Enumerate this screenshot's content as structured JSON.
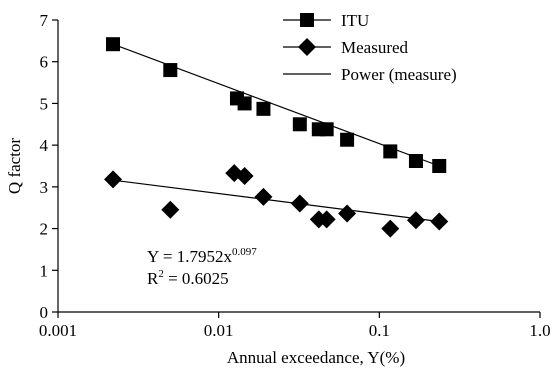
{
  "chart_data": {
    "type": "scatter",
    "xlabel": "Annual exceedance, Y(%)",
    "ylabel": "Q factor",
    "x_scale": "log",
    "xlim": [
      0.001,
      1.0
    ],
    "ylim": [
      0,
      7
    ],
    "x_ticks": [
      {
        "value": 0.001,
        "label": "0.001"
      },
      {
        "value": 0.01,
        "label": "0.01"
      },
      {
        "value": 0.1,
        "label": "0.1"
      },
      {
        "value": 1.0,
        "label": "1.0"
      }
    ],
    "y_ticks": [
      0,
      1,
      2,
      3,
      4,
      5,
      6,
      7
    ],
    "grid": false,
    "legend_position": "top-right",
    "series": [
      {
        "name": "ITU",
        "marker": "square",
        "color": "#000000",
        "x": [
          0.0022,
          0.005,
          0.013,
          0.0145,
          0.019,
          0.032,
          0.042,
          0.047,
          0.063,
          0.117,
          0.169,
          0.236
        ],
        "y": [
          6.42,
          5.8,
          5.12,
          5.0,
          4.87,
          4.5,
          4.38,
          4.38,
          4.13,
          3.85,
          3.62,
          3.5
        ]
      },
      {
        "name": "Measured",
        "marker": "diamond",
        "color": "#000000",
        "x": [
          0.0022,
          0.005,
          0.0125,
          0.0145,
          0.019,
          0.032,
          0.042,
          0.047,
          0.063,
          0.117,
          0.169,
          0.236
        ],
        "y": [
          3.18,
          2.45,
          3.33,
          3.26,
          2.76,
          2.6,
          2.22,
          2.22,
          2.36,
          2.0,
          2.2,
          2.17
        ]
      }
    ],
    "trendlines": [
      {
        "name": "",
        "of": "ITU",
        "x": [
          0.0022,
          0.236
        ],
        "y": [
          6.42,
          3.5
        ]
      },
      {
        "name": "Power (measure)",
        "of": "Measured",
        "x": [
          0.0022,
          0.236
        ],
        "y": [
          3.16,
          2.17
        ]
      }
    ],
    "annotations": [
      {
        "text_main": "Y = 1.7952x",
        "text_sup": "0.097"
      },
      {
        "text_main": "R",
        "text_sup": "2",
        "text_tail": " = 0.6025"
      }
    ]
  }
}
